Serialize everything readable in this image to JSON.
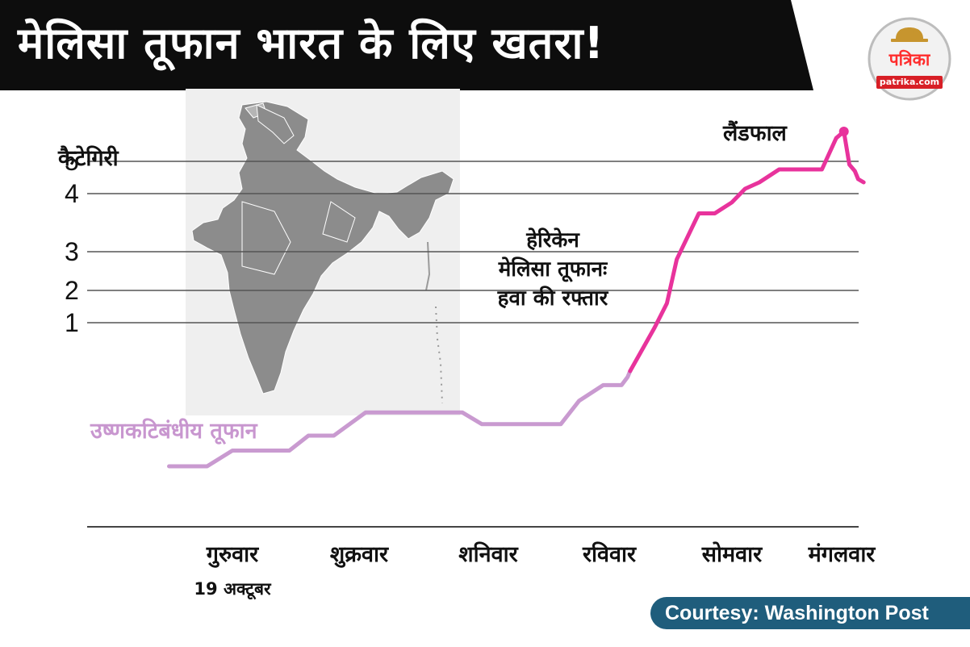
{
  "header": {
    "title": "मेलिसा तूफान भारत के लिए खतरा!",
    "logo_text": "पत्रिका",
    "logo_domain": "patrika.com"
  },
  "colors": {
    "banner": "#0d0d0d",
    "hurricane_line": "#e8339c",
    "tropical_storm_line": "#c99ad0",
    "grid": "#555555",
    "map_land": "#8c8c8c",
    "map_background": "#efefef",
    "courtesy_bg": "#1f5d7c"
  },
  "chart_data": {
    "type": "line",
    "title": "हेरिकेन मेलिसा तूफानः हवा की रफ्तार",
    "title_lines": [
      "हेरिकेन",
      "मेलिसा तूफानः",
      "हवा की रफ्तार"
    ],
    "ylabel": "कैटेगिरी",
    "ytick_labels": [
      "1",
      "2",
      "3",
      "4",
      "5"
    ],
    "xtick_labels": [
      "गुरुवार",
      "शुक्रवार",
      "शनिवार",
      "रविवार",
      "सोमवार",
      "मंगलवार"
    ],
    "x_note": "19 अक्टूबर",
    "series": [
      {
        "name": "उष्णकटिबंधीय तूफान",
        "points": [
          [
            -0.5,
            -1.15
          ],
          [
            -0.2,
            -1.15
          ],
          [
            0.0,
            -0.96
          ],
          [
            0.45,
            -0.96
          ],
          [
            0.6,
            -0.78
          ],
          [
            0.8,
            -0.78
          ],
          [
            1.05,
            -0.5
          ],
          [
            1.8,
            -0.5
          ],
          [
            1.95,
            -0.64
          ],
          [
            2.6,
            -0.64
          ],
          [
            2.75,
            -0.36
          ],
          [
            2.95,
            -0.17
          ],
          [
            3.1,
            -0.17
          ],
          [
            3.15,
            -0.07
          ],
          [
            3.17,
            0.0
          ]
        ]
      },
      {
        "name": "हेरिकेन",
        "points": [
          [
            3.17,
            0.0
          ],
          [
            3.37,
            0.9
          ],
          [
            3.47,
            1.6
          ],
          [
            3.55,
            2.8
          ],
          [
            3.73,
            3.66
          ],
          [
            3.86,
            3.66
          ],
          [
            4.0,
            3.85
          ],
          [
            4.12,
            4.15
          ],
          [
            4.25,
            4.35
          ],
          [
            4.43,
            4.75
          ],
          [
            4.5,
            4.75
          ],
          [
            4.82,
            4.75
          ],
          [
            4.95,
            5.28
          ],
          [
            5.02,
            5.36
          ],
          [
            5.07,
            4.9
          ],
          [
            5.12,
            4.7
          ],
          [
            5.15,
            4.45
          ],
          [
            5.2,
            4.35
          ]
        ]
      }
    ],
    "landfall_point": [
      5.02,
      5.36
    ],
    "grid": true
  },
  "annotations": {
    "landfall": "लैंडफाल",
    "tropical_storm": "उष्णकटिबंधीय तूफान",
    "courtesy": "Courtesy: Washington Post"
  }
}
